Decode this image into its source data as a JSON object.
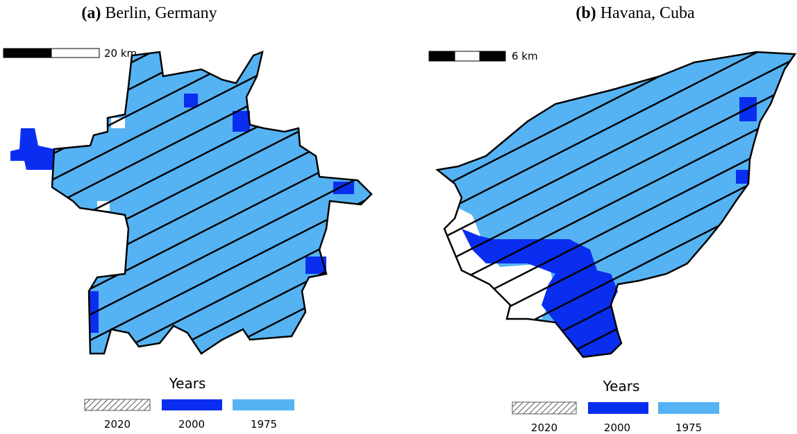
{
  "panels": [
    {
      "label": "(a)",
      "title": "Berlin, Germany",
      "scale": "20 km",
      "legend": {
        "title": "Years",
        "items": [
          "2020",
          "2000",
          "1975"
        ]
      }
    },
    {
      "label": "(b)",
      "title": "Havana, Cuba",
      "scale": "6 km",
      "legend": {
        "title": "Years",
        "items": [
          "2020",
          "2000",
          "1975"
        ]
      }
    }
  ]
}
